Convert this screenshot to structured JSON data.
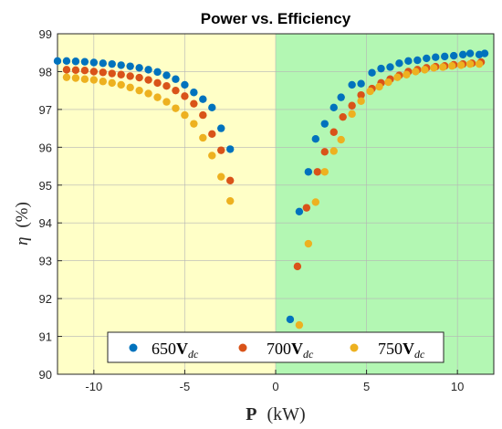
{
  "chart_data": {
    "type": "scatter",
    "title": "Power vs. Efficiency",
    "xlabel_main": "P",
    "xlabel_unit": "(kW)",
    "ylabel_symbol": "η",
    "ylabel_unit": "(%)",
    "xlim": [
      -12,
      12
    ],
    "ylim": [
      90,
      99
    ],
    "x_ticks": [
      -10,
      -5,
      0,
      5,
      10
    ],
    "y_ticks": [
      90,
      91,
      92,
      93,
      94,
      95,
      96,
      97,
      98,
      99
    ],
    "grid": true,
    "legend_position": "bottom-center",
    "background_regions": [
      {
        "name": "negative-power",
        "x_range": [
          -12,
          0
        ],
        "color": "#ffff99",
        "opacity": 0.55
      },
      {
        "name": "positive-power",
        "x_range": [
          0,
          12
        ],
        "color": "#8af28a",
        "opacity": 0.65
      }
    ],
    "series": [
      {
        "name": "650V",
        "legend_value": "650",
        "legend_symbol": "V",
        "legend_subscript": "dc",
        "color": "#0072bd",
        "points": [
          [
            -12,
            98.28
          ],
          [
            -11.5,
            98.28
          ],
          [
            -11,
            98.27
          ],
          [
            -10.5,
            98.26
          ],
          [
            -10,
            98.24
          ],
          [
            -9.5,
            98.22
          ],
          [
            -9,
            98.2
          ],
          [
            -8.5,
            98.17
          ],
          [
            -8,
            98.14
          ],
          [
            -7.5,
            98.1
          ],
          [
            -7,
            98.05
          ],
          [
            -6.5,
            97.99
          ],
          [
            -6,
            97.9
          ],
          [
            -5.5,
            97.8
          ],
          [
            -5,
            97.65
          ],
          [
            -4.5,
            97.45
          ],
          [
            -4,
            97.27
          ],
          [
            -3.5,
            97.05
          ],
          [
            -3,
            96.5
          ],
          [
            -2.5,
            95.95
          ],
          [
            0.8,
            91.45
          ],
          [
            1.3,
            94.3
          ],
          [
            1.8,
            95.35
          ],
          [
            2.2,
            96.22
          ],
          [
            2.7,
            96.62
          ],
          [
            3.2,
            97.05
          ],
          [
            3.6,
            97.32
          ],
          [
            4.2,
            97.65
          ],
          [
            4.7,
            97.68
          ],
          [
            5.3,
            97.97
          ],
          [
            5.8,
            98.08
          ],
          [
            6.3,
            98.12
          ],
          [
            6.8,
            98.22
          ],
          [
            7.3,
            98.28
          ],
          [
            7.8,
            98.3
          ],
          [
            8.3,
            98.35
          ],
          [
            8.8,
            98.38
          ],
          [
            9.3,
            98.4
          ],
          [
            9.8,
            98.42
          ],
          [
            10.3,
            98.45
          ],
          [
            10.7,
            98.48
          ],
          [
            11.2,
            98.45
          ],
          [
            11.5,
            98.48
          ]
        ]
      },
      {
        "name": "700V",
        "legend_value": "700",
        "legend_symbol": "V",
        "legend_subscript": "dc",
        "color": "#d95319",
        "points": [
          [
            -11.5,
            98.05
          ],
          [
            -11,
            98.04
          ],
          [
            -10.5,
            98.03
          ],
          [
            -10,
            98.0
          ],
          [
            -9.5,
            97.98
          ],
          [
            -9,
            97.95
          ],
          [
            -8.5,
            97.92
          ],
          [
            -8,
            97.88
          ],
          [
            -7.5,
            97.84
          ],
          [
            -7,
            97.78
          ],
          [
            -6.5,
            97.7
          ],
          [
            -6,
            97.62
          ],
          [
            -5.5,
            97.5
          ],
          [
            -5,
            97.35
          ],
          [
            -4.5,
            97.15
          ],
          [
            -4,
            96.85
          ],
          [
            -3.5,
            96.35
          ],
          [
            -3,
            95.92
          ],
          [
            -2.5,
            95.12
          ],
          [
            1.2,
            92.85
          ],
          [
            1.7,
            94.4
          ],
          [
            2.3,
            95.35
          ],
          [
            2.7,
            95.88
          ],
          [
            3.2,
            96.4
          ],
          [
            3.7,
            96.8
          ],
          [
            4.2,
            97.1
          ],
          [
            4.7,
            97.38
          ],
          [
            5.3,
            97.55
          ],
          [
            5.8,
            97.7
          ],
          [
            6.3,
            97.8
          ],
          [
            6.8,
            97.9
          ],
          [
            7.3,
            98.0
          ],
          [
            7.8,
            98.05
          ],
          [
            8.3,
            98.1
          ],
          [
            8.8,
            98.13
          ],
          [
            9.3,
            98.15
          ],
          [
            9.8,
            98.18
          ],
          [
            10.3,
            98.2
          ],
          [
            10.8,
            98.22
          ],
          [
            11.3,
            98.25
          ]
        ]
      },
      {
        "name": "750V",
        "legend_value": "750",
        "legend_symbol": "V",
        "legend_subscript": "dc",
        "color": "#edb120",
        "points": [
          [
            -11.5,
            97.85
          ],
          [
            -11,
            97.83
          ],
          [
            -10.5,
            97.8
          ],
          [
            -10,
            97.78
          ],
          [
            -9.5,
            97.74
          ],
          [
            -9,
            97.7
          ],
          [
            -8.5,
            97.65
          ],
          [
            -8,
            97.58
          ],
          [
            -7.5,
            97.5
          ],
          [
            -7,
            97.42
          ],
          [
            -6.5,
            97.32
          ],
          [
            -6,
            97.2
          ],
          [
            -5.5,
            97.03
          ],
          [
            -5,
            96.85
          ],
          [
            -4.5,
            96.62
          ],
          [
            -4,
            96.25
          ],
          [
            -3.5,
            95.78
          ],
          [
            -3,
            95.22
          ],
          [
            -2.5,
            94.58
          ],
          [
            1.3,
            91.3
          ],
          [
            1.8,
            93.45
          ],
          [
            2.2,
            94.55
          ],
          [
            2.7,
            95.35
          ],
          [
            3.2,
            95.9
          ],
          [
            3.6,
            96.2
          ],
          [
            4.2,
            96.88
          ],
          [
            4.7,
            97.22
          ],
          [
            5.2,
            97.48
          ],
          [
            5.7,
            97.6
          ],
          [
            6.2,
            97.72
          ],
          [
            6.7,
            97.85
          ],
          [
            7.2,
            97.92
          ],
          [
            7.7,
            98.0
          ],
          [
            8.2,
            98.05
          ],
          [
            8.7,
            98.1
          ],
          [
            9.2,
            98.12
          ],
          [
            9.7,
            98.15
          ],
          [
            10.2,
            98.17
          ],
          [
            10.7,
            98.2
          ],
          [
            11.2,
            98.2
          ]
        ]
      }
    ]
  }
}
